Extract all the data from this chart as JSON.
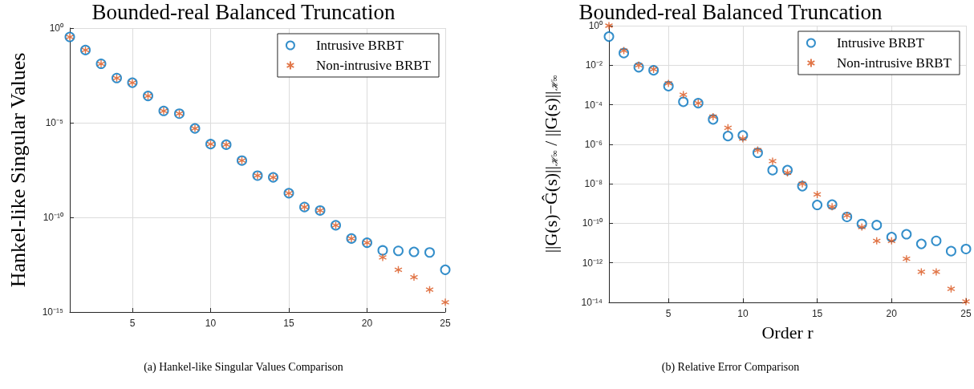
{
  "chart_data": [
    {
      "type": "scatter",
      "title": "Bounded-real Balanced Truncation",
      "ylabel": "Hankel-like Singular Values",
      "x": [
        1,
        2,
        3,
        4,
        5,
        6,
        7,
        8,
        9,
        10,
        11,
        12,
        13,
        14,
        15,
        16,
        17,
        18,
        19,
        20,
        21,
        22,
        23,
        24,
        25
      ],
      "series": [
        {
          "name": "Intrusive BRBT",
          "color": "#0072bd",
          "marker": "circle",
          "values": [
            0.34,
            0.069,
            0.013,
            0.0023,
            0.0013,
            0.00026,
            4.2e-05,
            3e-05,
            5e-06,
            7.4e-07,
            6.9e-07,
            1e-07,
            1.6e-08,
            1.3e-08,
            1.9e-09,
            3.5e-10,
            2.3e-10,
            3.8e-11,
            7.6e-12,
            4.6e-12,
            1.8e-12,
            1.7e-12,
            1.5e-12,
            1.4e-12,
            1.7e-13
          ]
        },
        {
          "name": "Non-intrusive BRBT",
          "color": "#d95319",
          "marker": "cross",
          "values": [
            0.34,
            0.069,
            0.013,
            0.0023,
            0.0013,
            0.00026,
            4.2e-05,
            3e-05,
            5e-06,
            7.4e-07,
            6.9e-07,
            1e-07,
            1.6e-08,
            1.3e-08,
            1.9e-09,
            3.5e-10,
            2.3e-10,
            3.8e-11,
            7.6e-12,
            4.6e-12,
            7.7e-13,
            1.7e-13,
            6.9e-14,
            1.5e-14,
            3.3e-15
          ]
        }
      ],
      "xlim": [
        1,
        25
      ],
      "xticks": [
        5,
        10,
        15,
        20,
        25
      ],
      "ylim": [
        1e-15,
        1
      ],
      "yticks": [
        {
          "value": 1e-15,
          "label": "10⁻¹⁵"
        },
        {
          "value": 1e-10,
          "label": "10⁻¹⁰"
        },
        {
          "value": 1e-05,
          "label": "10⁻⁵"
        },
        {
          "value": 1,
          "label": "10⁰"
        }
      ],
      "log": "y",
      "grid": true,
      "legend": "top right",
      "annotations": [
        "(a) Hankel-like Singular Values Comparison"
      ]
    },
    {
      "type": "scatter",
      "title": "Bounded-real Balanced Truncation",
      "xlabel": "Order r",
      "ylabel": "||G(s)−Ĝ(s)||$_{ℋ∞}$ / ||G(s)||$_{ℋ∞}$",
      "x": [
        1,
        2,
        3,
        4,
        5,
        6,
        7,
        8,
        9,
        10,
        11,
        12,
        13,
        14,
        15,
        16,
        17,
        18,
        19,
        20,
        21,
        22,
        23,
        24,
        25
      ],
      "series": [
        {
          "name": "Intrusive BRBT",
          "color": "#0072bd",
          "marker": "circle",
          "values": [
            0.28,
            0.041,
            0.0079,
            0.0055,
            0.00087,
            0.00014,
            0.00012,
            1.8e-05,
            2.6e-06,
            2.8e-06,
            3.7e-07,
            4.9e-08,
            4.9e-08,
            7.6e-09,
            8.5e-10,
            8.9e-10,
            2.1e-10,
            9.3e-11,
            8.1e-11,
            2e-11,
            2.8e-11,
            9.1e-12,
            1.3e-11,
            3.9e-12,
            5e-12
          ]
        },
        {
          "name": "Non-intrusive BRBT",
          "color": "#d95319",
          "marker": "cross",
          "values": [
            1,
            0.055,
            0.01,
            0.0062,
            0.0012,
            0.00032,
            0.00012,
            2.5e-05,
            6.8e-06,
            1.9e-06,
            5.1e-07,
            1.4e-07,
            3.6e-08,
            1e-08,
            2.9e-09,
            6.9e-10,
            2.5e-10,
            6.5e-11,
            1.3e-11,
            1.3e-11,
            1.6e-12,
            3.5e-13,
            3.5e-13,
            4.8e-14,
            1.1e-14
          ]
        }
      ],
      "xlim": [
        1,
        25
      ],
      "xticks": [
        5,
        10,
        15,
        20,
        25
      ],
      "ylim": [
        1e-14,
        1
      ],
      "yticks": [
        {
          "value": 1e-14,
          "label": "10⁻¹⁴"
        },
        {
          "value": 1e-12,
          "label": "10⁻¹²"
        },
        {
          "value": 1e-10,
          "label": "10⁻¹⁰"
        },
        {
          "value": 1e-08,
          "label": "10⁻⁸"
        },
        {
          "value": 1e-06,
          "label": "10⁻⁶"
        },
        {
          "value": 0.0001,
          "label": "10⁻⁴"
        },
        {
          "value": 0.01,
          "label": "10⁻²"
        },
        {
          "value": 1,
          "label": "10⁰"
        }
      ],
      "log": "y",
      "grid": true,
      "legend": "top right",
      "annotations": [
        "(b) Relative Error Comparison"
      ]
    }
  ]
}
